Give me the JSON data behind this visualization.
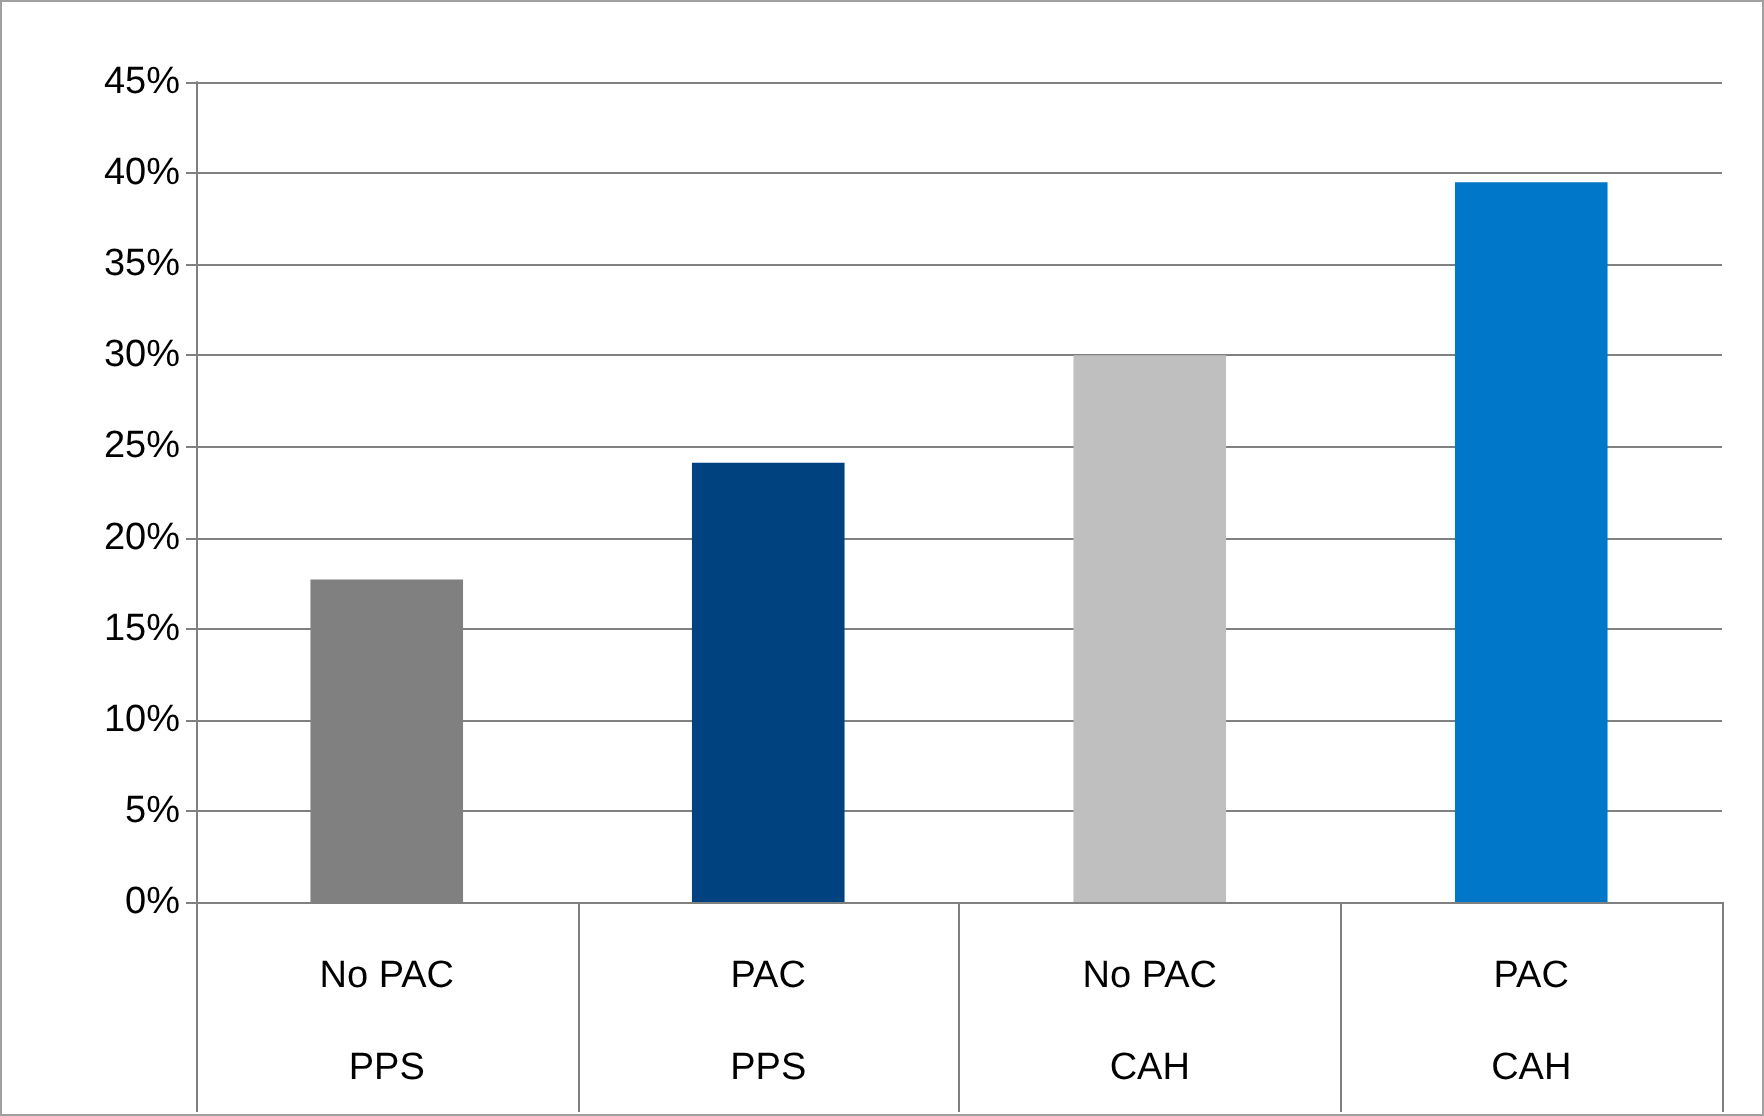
{
  "chart_data": {
    "type": "bar",
    "categories": [
      "No PAC\nPPS",
      "PAC\nPPS",
      "No PAC\nCAH",
      "PAC\nCAH"
    ],
    "values": [
      17.7,
      24.1,
      30,
      39.5
    ],
    "colors": [
      "#808080",
      "#00427f",
      "#bfbfbf",
      "#0077c8"
    ],
    "ylim": [
      0,
      45
    ],
    "yticks": [
      {
        "value": 0,
        "label": "0%"
      },
      {
        "value": 5,
        "label": "5%"
      },
      {
        "value": 10,
        "label": "10%"
      },
      {
        "value": 15,
        "label": "15%"
      },
      {
        "value": 20,
        "label": "20%"
      },
      {
        "value": 25,
        "label": "25%"
      },
      {
        "value": 30,
        "label": "30%"
      },
      {
        "value": 35,
        "label": "35%"
      },
      {
        "value": 40,
        "label": "40%"
      },
      {
        "value": 45,
        "label": "45%"
      }
    ],
    "grid": "y"
  }
}
